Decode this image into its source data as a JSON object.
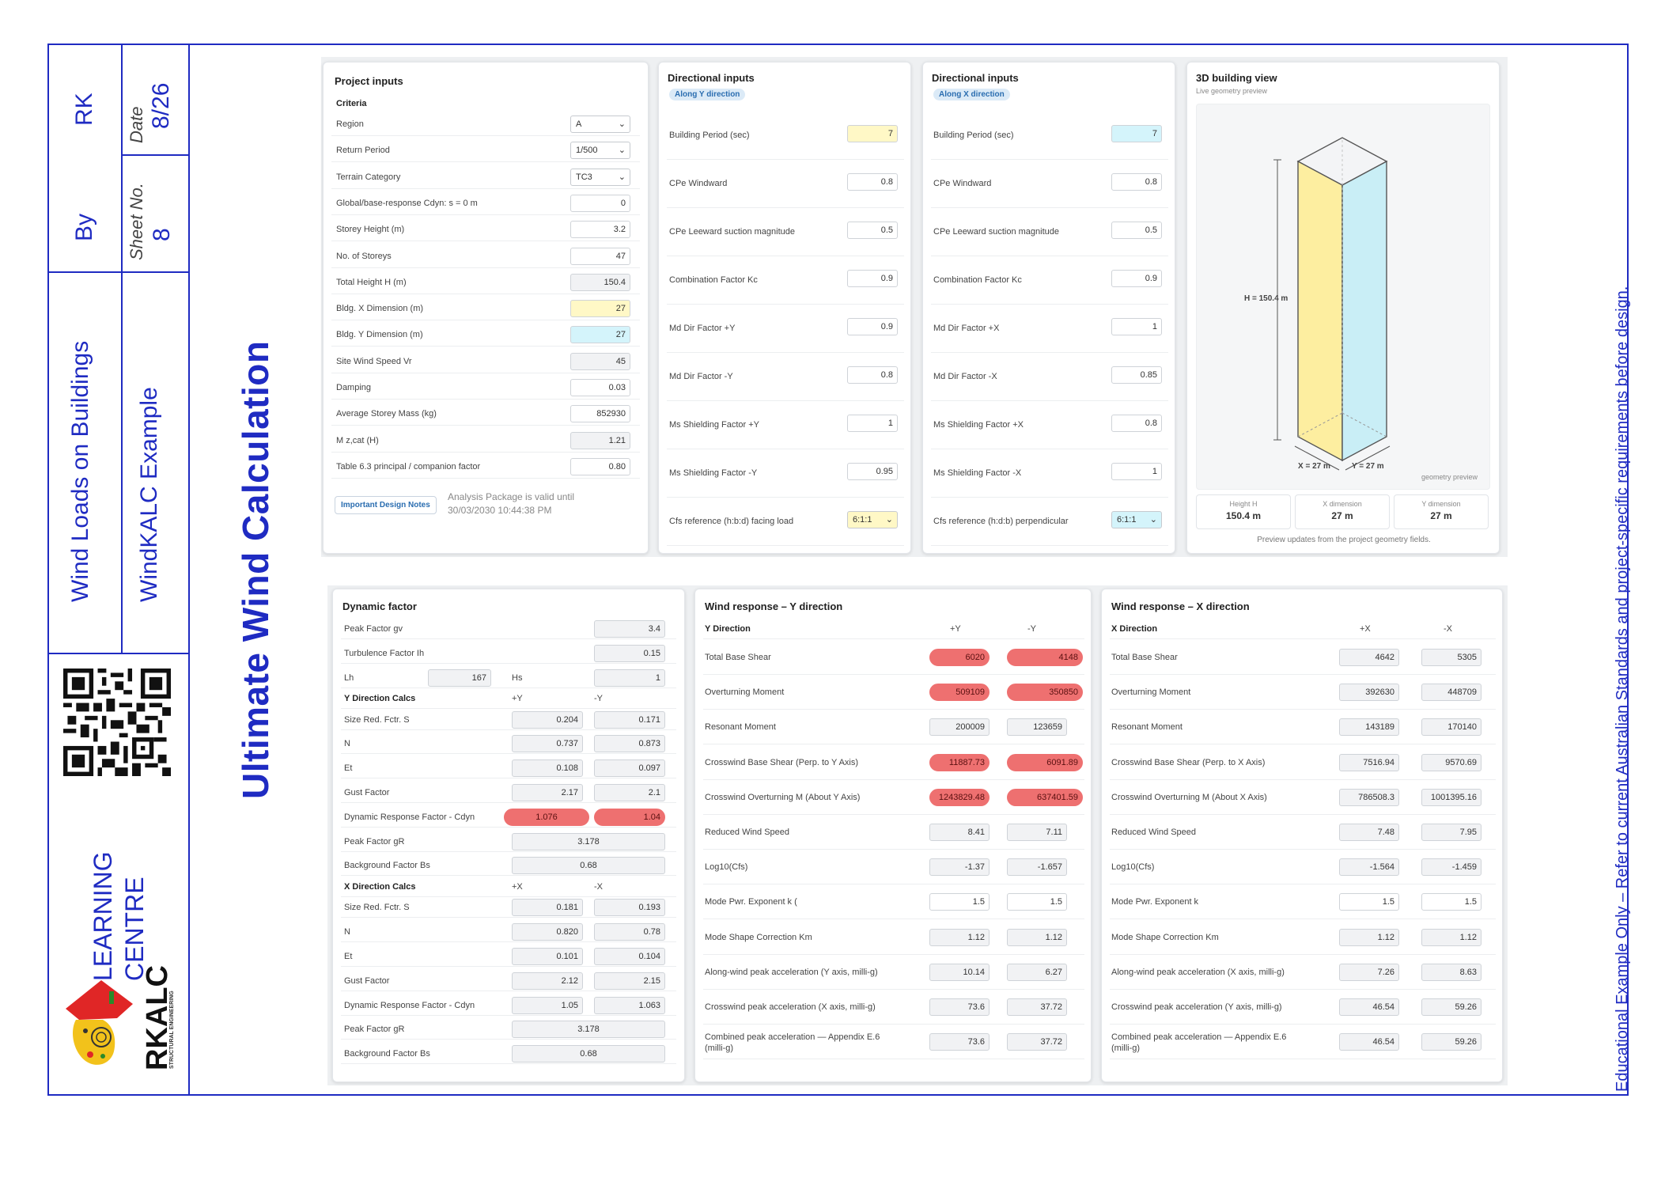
{
  "title_block": {
    "initials": "RK",
    "by_label": "By",
    "date_label": "Date",
    "date_value": "8/26",
    "sheet_label": "Sheet No.",
    "sheet_value": "8",
    "subject": "Wind Loads on Buildings",
    "example": "WindKALC Example",
    "learning_line1": "LEARNING",
    "learning_line2": "CENTRE",
    "logo_brand": "RKALC",
    "logo_sub": "STRUCTURAL ENGINEERING"
  },
  "page_title": "Ultimate Wind Calculation",
  "side_note": "Educational Example Only – Refer to current Australian Standards and project-specific requirements before design.",
  "project_inputs": {
    "title": "Project inputs",
    "section": "Criteria",
    "rows": [
      {
        "label": "Region",
        "value": "A",
        "kind": "select"
      },
      {
        "label": "Return Period",
        "value": "1/500",
        "kind": "select"
      },
      {
        "label": "Terrain Category",
        "value": "TC3",
        "kind": "select"
      },
      {
        "label": "Global/base-response Cdyn: s = 0 m",
        "value": "0",
        "kind": "input"
      },
      {
        "label": "Storey Height (m)",
        "value": "3.2",
        "kind": "input"
      },
      {
        "label": "No. of Storeys",
        "value": "47",
        "kind": "input"
      },
      {
        "label": "Total Height H (m)",
        "value": "150.4",
        "kind": "grey"
      },
      {
        "label": "Bldg. X Dimension (m)",
        "value": "27",
        "kind": "yellow"
      },
      {
        "label": "Bldg. Y Dimension (m)",
        "value": "27",
        "kind": "cyan"
      },
      {
        "label": "Site Wind Speed Vr",
        "value": "45",
        "kind": "grey"
      },
      {
        "label": "Damping",
        "value": "0.03",
        "kind": "input"
      },
      {
        "label": "Average Storey Mass (kg)",
        "value": "852930",
        "kind": "input"
      },
      {
        "label": "M z,cat (H)",
        "value": "1.21",
        "kind": "grey"
      },
      {
        "label": "Table 6.3 principal / companion factor",
        "value": "0.80",
        "kind": "input"
      }
    ],
    "notes_button": "Important Design Notes",
    "validity_line1": "Analysis Package is valid until",
    "validity_line2": "30/03/2030 10:44:38 PM"
  },
  "dir_y": {
    "title": "Directional inputs",
    "tag": "Along Y direction",
    "rows": [
      {
        "label": "Building Period (sec)",
        "value": "7",
        "kind": "yellow"
      },
      {
        "label": "CPe Windward",
        "value": "0.8",
        "kind": "input"
      },
      {
        "label": "CPe Leeward suction magnitude",
        "value": "0.5",
        "kind": "input"
      },
      {
        "label": "Combination Factor Kc",
        "value": "0.9",
        "kind": "input"
      },
      {
        "label": "Md Dir Factor +Y",
        "value": "0.9",
        "kind": "input"
      },
      {
        "label": "Md Dir Factor -Y",
        "value": "0.8",
        "kind": "input"
      },
      {
        "label": "Ms Shielding Factor +Y",
        "value": "1",
        "kind": "input"
      },
      {
        "label": "Ms Shielding Factor -Y",
        "value": "0.95",
        "kind": "input"
      },
      {
        "label": "Cfs reference (h:b:d) facing load",
        "value": "6:1:1",
        "kind": "select-yellow"
      }
    ]
  },
  "dir_x": {
    "title": "Directional inputs",
    "tag": "Along X direction",
    "rows": [
      {
        "label": "Building Period (sec)",
        "value": "7",
        "kind": "cyan"
      },
      {
        "label": "CPe Windward",
        "value": "0.8",
        "kind": "input"
      },
      {
        "label": "CPe Leeward suction magnitude",
        "value": "0.5",
        "kind": "input"
      },
      {
        "label": "Combination Factor Kc",
        "value": "0.9",
        "kind": "input"
      },
      {
        "label": "Md Dir Factor +X",
        "value": "1",
        "kind": "input"
      },
      {
        "label": "Md Dir Factor -X",
        "value": "0.85",
        "kind": "input"
      },
      {
        "label": "Ms Shielding Factor +X",
        "value": "0.8",
        "kind": "input"
      },
      {
        "label": "Ms Shielding Factor -X",
        "value": "1",
        "kind": "input"
      },
      {
        "label": "Cfs reference (h:d:b) perpendicular",
        "value": "6:1:1",
        "kind": "select-cyan"
      }
    ]
  },
  "building_view": {
    "title": "3D building view",
    "subtitle": "Live geometry preview",
    "h_label": "H = 150.4 m",
    "x_label": "X = 27 m",
    "y_label": "Y = 27 m",
    "corner_note": "geometry preview",
    "stats": [
      {
        "label": "Height H",
        "value": "150.4 m"
      },
      {
        "label": "X dimension",
        "value": "27 m"
      },
      {
        "label": "Y dimension",
        "value": "27 m"
      }
    ],
    "footer": "Preview updates from the project geometry fields.",
    "colors": {
      "front": "#fdeea0",
      "side": "#c9eef6",
      "top": "#f3f4f6"
    }
  },
  "dynamic_factor": {
    "title": "Dynamic factor",
    "peak_factor_gv": {
      "label": "Peak Factor gv",
      "value": "3.4"
    },
    "turbulence": {
      "label": "Turbulence Factor Ih",
      "value": "0.15"
    },
    "lh": {
      "label": "Lh",
      "value": "167",
      "hs_label": "Hs",
      "hs_value": "1"
    },
    "y_section": {
      "label": "Y Direction Calcs",
      "col1": "+Y",
      "col2": "-Y"
    },
    "y_rows": [
      {
        "label": "Size Red. Fctr. S",
        "v1": "0.204",
        "v2": "0.171"
      },
      {
        "label": "N",
        "v1": "0.737",
        "v2": "0.873"
      },
      {
        "label": "Et",
        "v1": "0.108",
        "v2": "0.097"
      },
      {
        "label": "Gust Factor",
        "v1": "2.17",
        "v2": "2.1"
      },
      {
        "label": "Dynamic Response Factor - Cdyn",
        "v1": "1.076",
        "v2": "1.04",
        "highlight": true
      }
    ],
    "y_peak": {
      "label": "Peak Factor gR",
      "value": "3.178"
    },
    "y_bg": {
      "label": "Background Factor Bs",
      "value": "0.68"
    },
    "x_section": {
      "label": "X Direction Calcs",
      "col1": "+X",
      "col2": "-X"
    },
    "x_rows": [
      {
        "label": "Size Red. Fctr. S",
        "v1": "0.181",
        "v2": "0.193"
      },
      {
        "label": "N",
        "v1": "0.820",
        "v2": "0.78"
      },
      {
        "label": "Et",
        "v1": "0.101",
        "v2": "0.104"
      },
      {
        "label": "Gust Factor",
        "v1": "2.12",
        "v2": "2.15"
      },
      {
        "label": "Dynamic Response Factor - Cdyn",
        "v1": "1.05",
        "v2": "1.063"
      }
    ],
    "x_peak": {
      "label": "Peak Factor gR",
      "value": "3.178"
    },
    "x_bg": {
      "label": "Background Factor Bs",
      "value": "0.68"
    }
  },
  "wind_y": {
    "title": "Wind response – Y direction",
    "header": {
      "label": "Y Direction",
      "col1": "+Y",
      "col2": "-Y"
    },
    "rows": [
      {
        "label": "Total Base Shear",
        "v1": "6020",
        "v2": "4148",
        "highlight": true
      },
      {
        "label": "Overturning Moment",
        "v1": "509109",
        "v2": "350850",
        "highlight": true
      },
      {
        "label": "Resonant Moment",
        "v1": "200009",
        "v2": "123659"
      },
      {
        "label": "Crosswind Base Shear (Perp. to Y Axis)",
        "v1": "11887.73",
        "v2": "6091.89",
        "highlight": true
      },
      {
        "label": "Crosswind Overturning M (About Y Axis)",
        "v1": "1243829.48",
        "v2": "637401.59",
        "highlight": true
      },
      {
        "label": "Reduced Wind Speed",
        "v1": "8.41",
        "v2": "7.11"
      },
      {
        "label": "Log10(Cfs)",
        "v1": "-1.37",
        "v2": "-1.657"
      },
      {
        "label": "Mode Pwr. Exponent k (",
        "v1": "1.5",
        "v2": "1.5",
        "white": true
      },
      {
        "label": "Mode Shape Correction Km",
        "v1": "1.12",
        "v2": "1.12"
      },
      {
        "label": "Along-wind peak acceleration (Y axis, milli-g)",
        "v1": "10.14",
        "v2": "6.27"
      },
      {
        "label": "Crosswind peak acceleration (X axis, milli-g)",
        "v1": "73.6",
        "v2": "37.72"
      },
      {
        "label": "Combined peak acceleration — Appendix E.6",
        "label2": "(milli-g)",
        "v1": "73.6",
        "v2": "37.72"
      }
    ]
  },
  "wind_x": {
    "title": "Wind response – X direction",
    "header": {
      "label": "X Direction",
      "col1": "+X",
      "col2": "-X"
    },
    "rows": [
      {
        "label": "Total Base Shear",
        "v1": "4642",
        "v2": "5305"
      },
      {
        "label": "Overturning Moment",
        "v1": "392630",
        "v2": "448709"
      },
      {
        "label": "Resonant Moment",
        "v1": "143189",
        "v2": "170140"
      },
      {
        "label": "Crosswind Base Shear (Perp. to X Axis)",
        "v1": "7516.94",
        "v2": "9570.69"
      },
      {
        "label": "Crosswind Overturning M (About X Axis)",
        "v1": "786508.3",
        "v2": "1001395.16"
      },
      {
        "label": "Reduced Wind Speed",
        "v1": "7.48",
        "v2": "7.95"
      },
      {
        "label": "Log10(Cfs)",
        "v1": "-1.564",
        "v2": "-1.459"
      },
      {
        "label": "Mode Pwr. Exponent k",
        "v1": "1.5",
        "v2": "1.5",
        "white": true
      },
      {
        "label": "Mode Shape Correction Km",
        "v1": "1.12",
        "v2": "1.12"
      },
      {
        "label": "Along-wind peak acceleration (X axis, milli-g)",
        "v1": "7.26",
        "v2": "8.63"
      },
      {
        "label": "Crosswind peak acceleration (Y axis, milli-g)",
        "v1": "46.54",
        "v2": "59.26"
      },
      {
        "label": "Combined peak acceleration — Appendix E.6",
        "label2": "(milli-g)",
        "v1": "46.54",
        "v2": "59.26"
      }
    ]
  }
}
